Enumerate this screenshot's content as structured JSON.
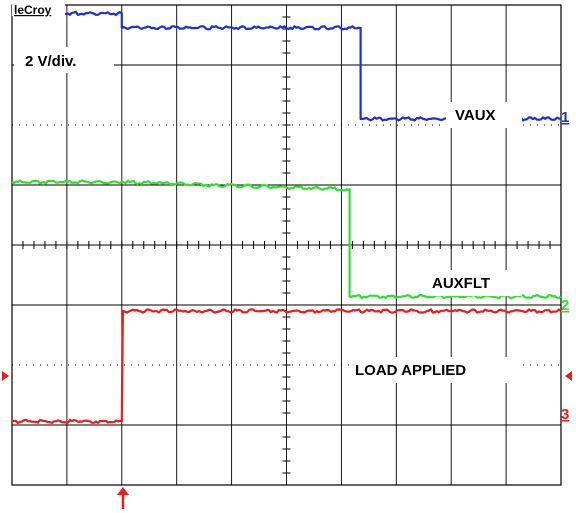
{
  "scope": {
    "brand": "leCroy",
    "scale_label": "2 V/div."
  },
  "colors": {
    "vaux": "#1f2fd6",
    "auxflt": "#2ee02e",
    "load": "#ef1b1b",
    "grid": "#000000",
    "background": "#ffffff"
  },
  "chart_data": {
    "type": "line",
    "title": "",
    "xlabel": "",
    "ylabel": "",
    "y_scale": "2 V/div.",
    "grid": {
      "x_divisions": 10,
      "y_divisions": 8,
      "enabled": true
    },
    "x_range_div": [
      0,
      10
    ],
    "y_range_div": [
      0,
      8
    ],
    "trigger_x_div": 2.0,
    "series": [
      {
        "name": "VAUX",
        "channel": "1",
        "color": "#1f2fd6",
        "points": [
          [
            0,
            7.86
          ],
          [
            2.0,
            7.86
          ],
          [
            2.0,
            7.62
          ],
          [
            6.35,
            7.62
          ],
          [
            6.35,
            6.1
          ],
          [
            10,
            6.1
          ]
        ]
      },
      {
        "name": "AUXFLT",
        "channel": "2",
        "color": "#2ee02e",
        "points": [
          [
            0,
            5.05
          ],
          [
            2.0,
            5.05
          ],
          [
            6.1,
            4.93
          ],
          [
            6.15,
            4.93
          ],
          [
            6.15,
            3.14
          ],
          [
            10,
            3.14
          ]
        ]
      },
      {
        "name": "LOAD APPLIED",
        "channel": "3",
        "color": "#ef1b1b",
        "points": [
          [
            0,
            1.06
          ],
          [
            1.93,
            1.06
          ],
          [
            2.0,
            1.06
          ],
          [
            2.02,
            2.9
          ],
          [
            10,
            2.9
          ]
        ]
      }
    ]
  }
}
